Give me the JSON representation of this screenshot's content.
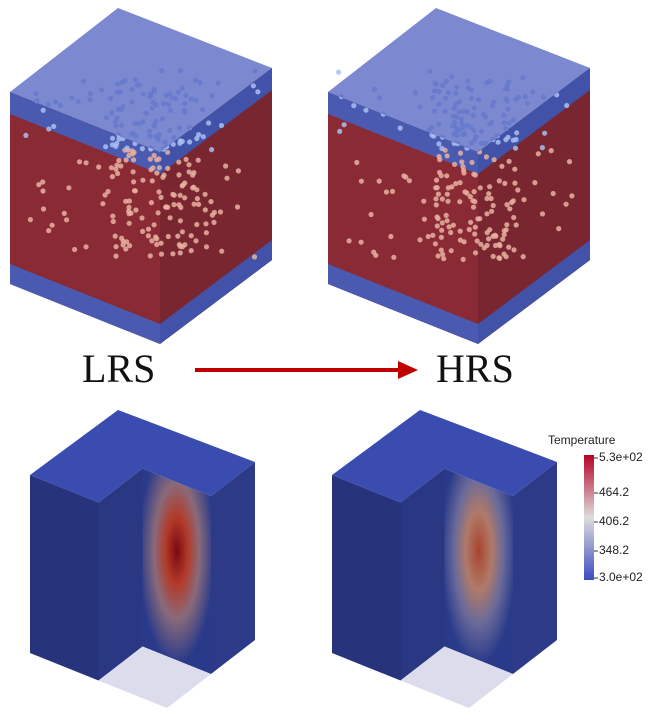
{
  "labels": {
    "left": "LRS",
    "right": "HRS"
  },
  "colorbar": {
    "title": "Temperature",
    "ticks": [
      "5.3e+02",
      "464.2",
      "406.2",
      "348.2",
      "3.0e+02"
    ]
  }
}
